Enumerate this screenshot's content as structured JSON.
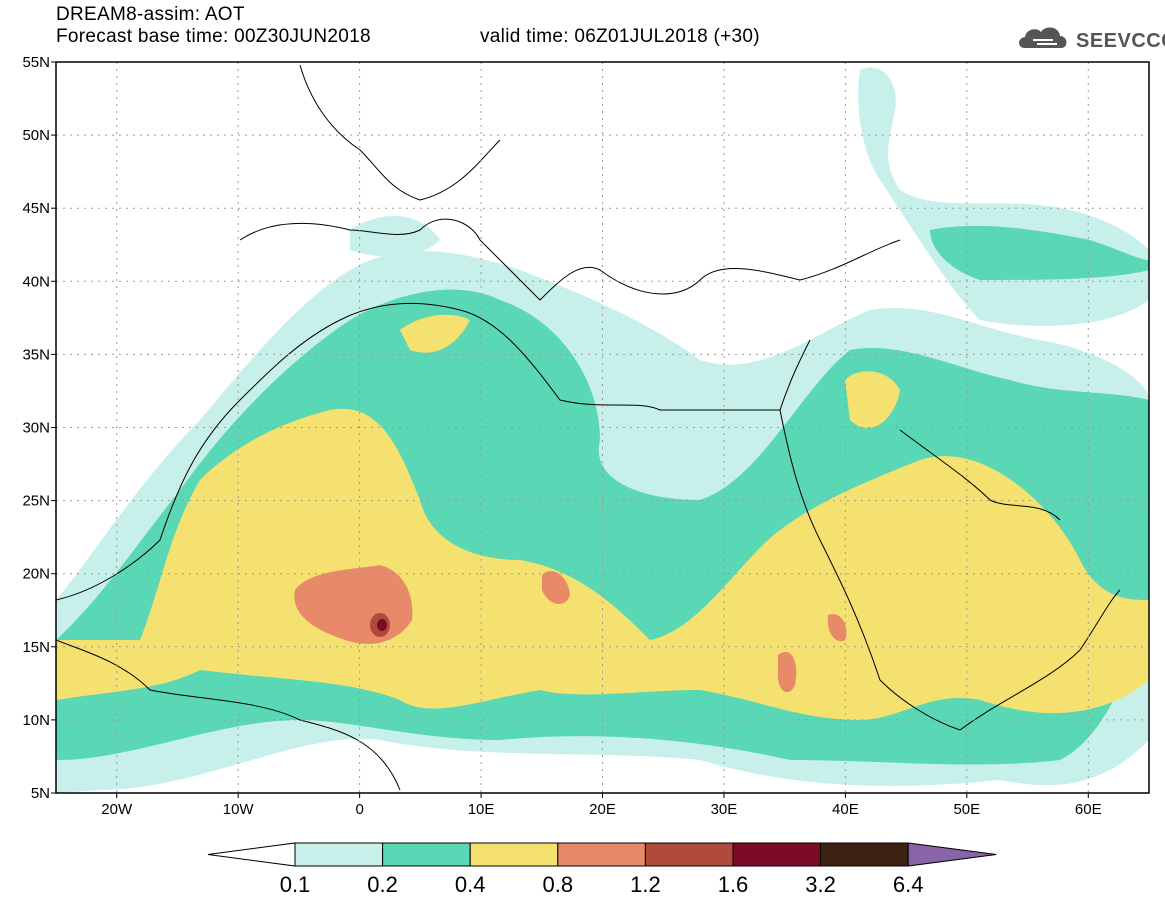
{
  "header": {
    "line1": "DREAM8-assim: AOT",
    "line2": "Forecast base time: 00Z30JUN2018",
    "line3": "valid time: 06Z01JUL2018 (+30)",
    "logo_text": "SEEVCCC",
    "logo_icon": "cloud-icon"
  },
  "map": {
    "lon_range": [
      -25,
      65
    ],
    "lat_range": [
      5,
      55
    ],
    "lat_ticks": [
      "55N",
      "50N",
      "45N",
      "40N",
      "35N",
      "30N",
      "25N",
      "20N",
      "15N",
      "10N",
      "5N"
    ],
    "lon_ticks": [
      "20W",
      "10W",
      "0",
      "10E",
      "20E",
      "30E",
      "40E",
      "50E",
      "60E"
    ],
    "grid": "dotted",
    "variable": "Aerosol Optical Thickness"
  },
  "colorbar": {
    "labels": [
      "0.1",
      "0.2",
      "0.4",
      "0.8",
      "1.2",
      "1.6",
      "3.2",
      "6.4"
    ],
    "colors": [
      "#c8f0ea",
      "#5ad7b4",
      "#f5e170",
      "#e8896a",
      "#b04a3c",
      "#7a0a26",
      "#3e2315",
      "#8a64a8"
    ],
    "under_color": "#ffffff"
  }
}
